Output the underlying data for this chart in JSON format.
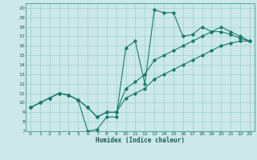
{
  "xlabel": "Humidex (Indice chaleur)",
  "xlim": [
    -0.5,
    23.5
  ],
  "ylim": [
    7,
    20.5
  ],
  "xticks": [
    0,
    1,
    2,
    3,
    4,
    5,
    6,
    7,
    8,
    9,
    10,
    11,
    12,
    13,
    14,
    15,
    16,
    17,
    18,
    19,
    20,
    21,
    22,
    23
  ],
  "yticks": [
    7,
    8,
    9,
    10,
    11,
    12,
    13,
    14,
    15,
    16,
    17,
    18,
    19,
    20
  ],
  "background_color": "#cce8e8",
  "grid_color": "#9fcece",
  "line_color": "#1a7a70",
  "line1_x": [
    0,
    1,
    2,
    3,
    4,
    5,
    6,
    7,
    8,
    9,
    10,
    11,
    12,
    13,
    14,
    15,
    16,
    17,
    18,
    19,
    20,
    21,
    22,
    23
  ],
  "line1_y": [
    9.5,
    10.0,
    10.5,
    11.0,
    10.8,
    10.3,
    7.0,
    7.2,
    8.5,
    8.5,
    15.8,
    16.5,
    12.0,
    19.8,
    19.5,
    19.5,
    17.0,
    17.2,
    18.0,
    17.5,
    18.0,
    17.5,
    17.0,
    16.5
  ],
  "line2_x": [
    0,
    1,
    2,
    3,
    4,
    5,
    6,
    7,
    8,
    9,
    10,
    11,
    12,
    13,
    14,
    15,
    16,
    17,
    18,
    19,
    20,
    21,
    22,
    23
  ],
  "line2_y": [
    9.5,
    10.0,
    10.5,
    11.0,
    10.8,
    10.3,
    9.5,
    8.5,
    9.0,
    9.0,
    11.5,
    12.2,
    13.0,
    14.5,
    15.0,
    15.5,
    16.0,
    16.5,
    17.0,
    17.5,
    17.5,
    17.2,
    16.8,
    16.5
  ],
  "line3_x": [
    0,
    1,
    2,
    3,
    4,
    5,
    6,
    7,
    8,
    9,
    10,
    11,
    12,
    13,
    14,
    15,
    16,
    17,
    18,
    19,
    20,
    21,
    22,
    23
  ],
  "line3_y": [
    9.5,
    10.0,
    10.5,
    11.0,
    10.8,
    10.3,
    9.5,
    8.5,
    9.0,
    9.0,
    10.5,
    11.0,
    11.5,
    12.5,
    13.0,
    13.5,
    14.0,
    14.5,
    15.0,
    15.5,
    16.0,
    16.3,
    16.5,
    16.5
  ]
}
